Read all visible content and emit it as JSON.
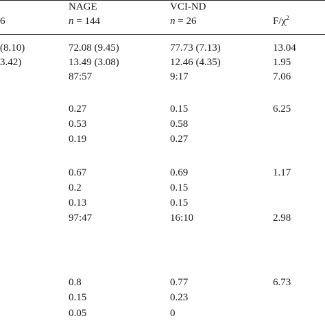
{
  "header": {
    "col0": "6",
    "col1": {
      "name": "NAGE",
      "n_label": "n",
      "n_value": "= 144"
    },
    "col2": {
      "name": "VCI-ND",
      "n_label": "n",
      "n_value": "= 26"
    },
    "col3": {
      "stat_main": "F/χ",
      "stat_sup": "2"
    }
  },
  "left_fragments": [
    "(8.10)",
    "3.42)"
  ],
  "rows": [
    {
      "nage": "72.08 (9.45)",
      "vci": "77.73 (7.13)",
      "stat": "13.04"
    },
    {
      "nage": "13.49 (3.08)",
      "vci": "12.46 (4.35)",
      "stat": "1.95"
    },
    {
      "nage": "87:57",
      "vci": "9:17",
      "stat": "7.06"
    },
    {
      "nage": "0.27",
      "vci": "0.15",
      "stat": "6.25"
    },
    {
      "nage": "0.53",
      "vci": "0.58",
      "stat": ""
    },
    {
      "nage": "0.19",
      "vci": "0.27",
      "stat": ""
    },
    {
      "nage": "0.67",
      "vci": "0.69",
      "stat": "1.17"
    },
    {
      "nage": "0.2",
      "vci": "0.15",
      "stat": ""
    },
    {
      "nage": "0.13",
      "vci": "0.15",
      "stat": ""
    },
    {
      "nage": "97:47",
      "vci": "16:10",
      "stat": "2.98"
    },
    {
      "nage": "0.8",
      "vci": "0.77",
      "stat": "6.73"
    },
    {
      "nage": "0.15",
      "vci": "0.23",
      "stat": ""
    },
    {
      "nage": "0.05",
      "vci": "0",
      "stat": ""
    }
  ]
}
